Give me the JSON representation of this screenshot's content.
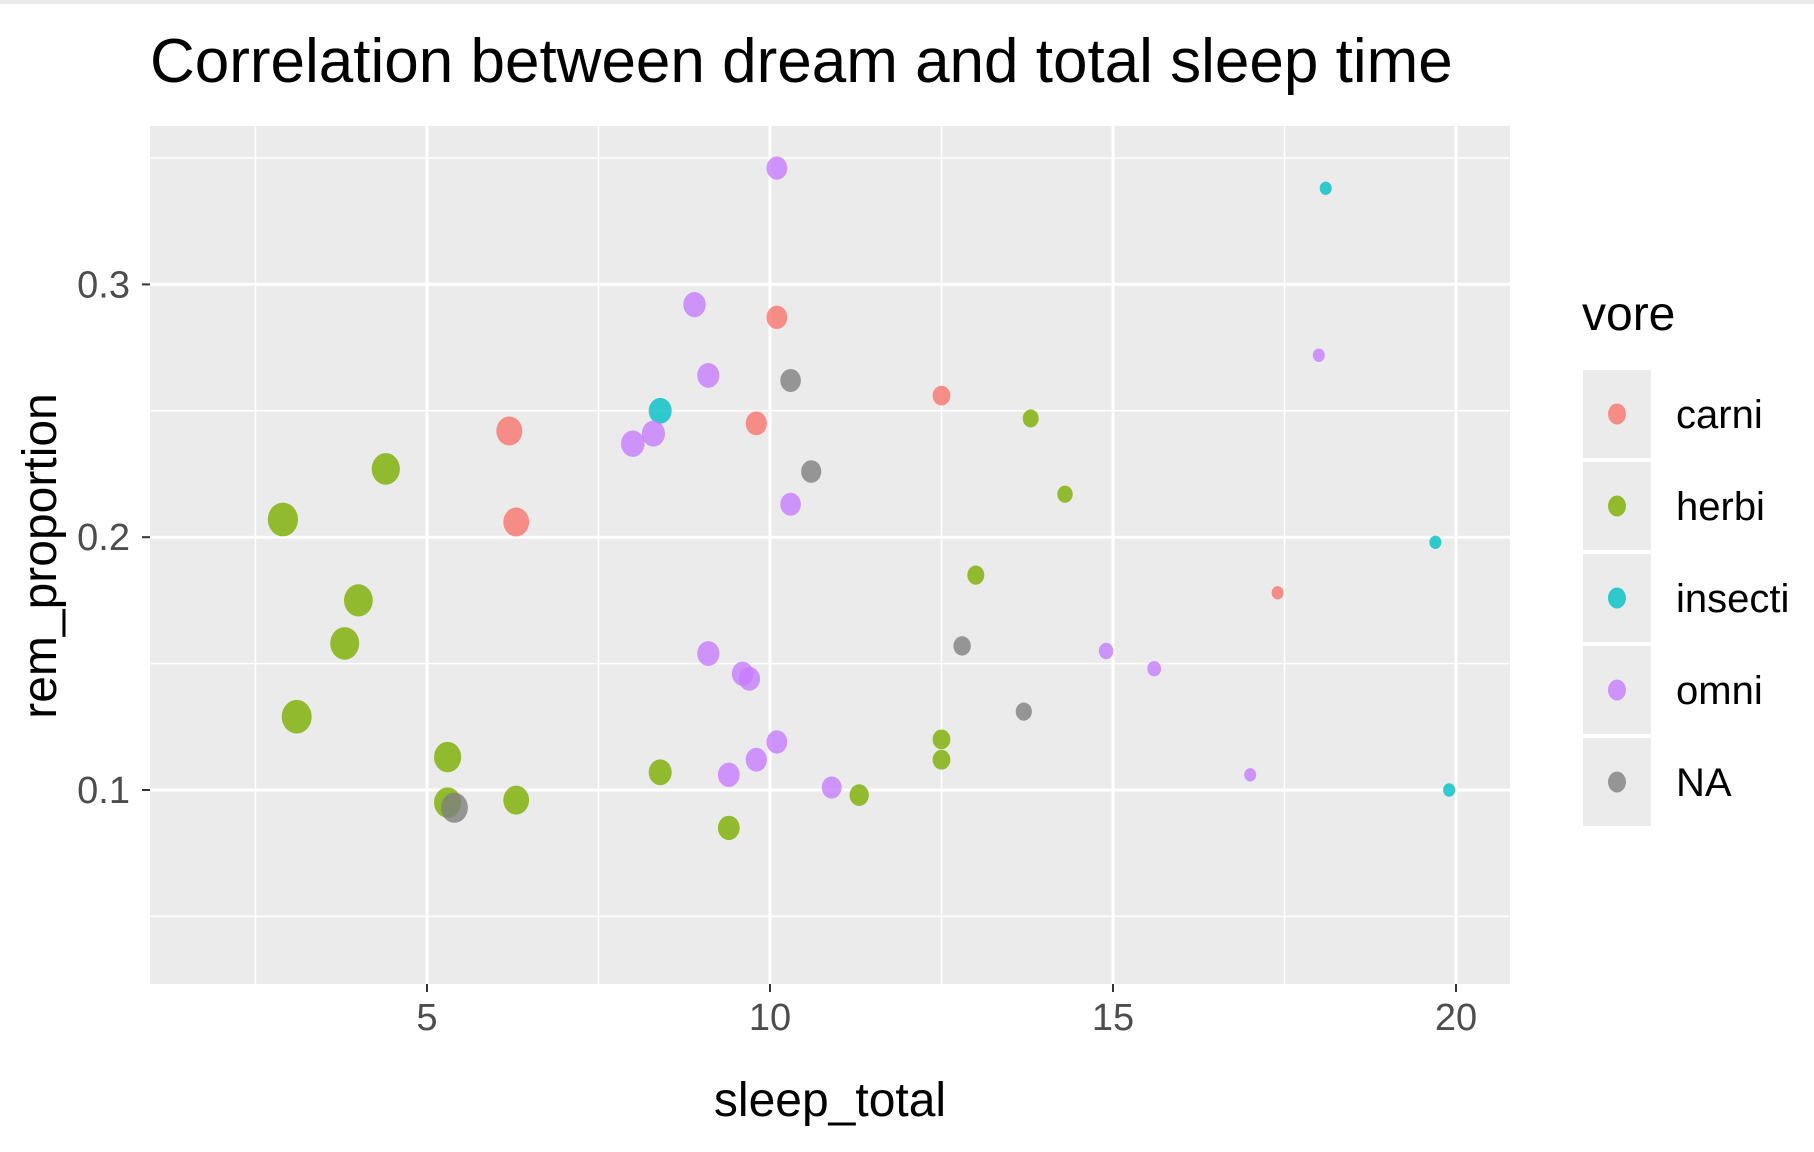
{
  "chart_data": {
    "type": "scatter",
    "title": "Correlation between dream and total sleep time",
    "xlabel": "sleep_total",
    "ylabel": "rem_proportion",
    "xlim": [
      1.0,
      21.0
    ],
    "ylim": [
      0.03,
      0.36
    ],
    "x_ticks": [
      5,
      10,
      15,
      20
    ],
    "x_tick_labels": [
      "5",
      "10",
      "15",
      "20"
    ],
    "y_ticks": [
      0.1,
      0.2,
      0.3
    ],
    "y_tick_labels": [
      "0.1",
      "0.2",
      "0.3"
    ],
    "grid": true,
    "legend": {
      "title": "vore",
      "position": "right",
      "entries": [
        {
          "label": "carni",
          "color": "#F8766D"
        },
        {
          "label": "herbi",
          "color": "#7CAE00"
        },
        {
          "label": "insecti",
          "color": "#00BFC4"
        },
        {
          "label": "omni",
          "color": "#C77CFF"
        },
        {
          "label": "NA",
          "color": "#7F7F7F"
        }
      ]
    },
    "size_encoding": "larger points at shorter sleep_total",
    "series": [
      {
        "name": "carni",
        "points": [
          {
            "x": 10.1,
            "y": 0.287
          },
          {
            "x": 12.5,
            "y": 0.256
          },
          {
            "x": 6.2,
            "y": 0.242
          },
          {
            "x": 9.8,
            "y": 0.245
          },
          {
            "x": 6.3,
            "y": 0.206
          },
          {
            "x": 17.4,
            "y": 0.178
          }
        ]
      },
      {
        "name": "herbi",
        "points": [
          {
            "x": 4.4,
            "y": 0.227
          },
          {
            "x": 2.9,
            "y": 0.207
          },
          {
            "x": 4.0,
            "y": 0.175
          },
          {
            "x": 3.8,
            "y": 0.158
          },
          {
            "x": 3.1,
            "y": 0.129
          },
          {
            "x": 5.3,
            "y": 0.113
          },
          {
            "x": 5.3,
            "y": 0.095
          },
          {
            "x": 6.3,
            "y": 0.096
          },
          {
            "x": 8.4,
            "y": 0.107
          },
          {
            "x": 9.4,
            "y": 0.085
          },
          {
            "x": 11.3,
            "y": 0.098
          },
          {
            "x": 12.5,
            "y": 0.12
          },
          {
            "x": 12.5,
            "y": 0.112
          },
          {
            "x": 13.0,
            "y": 0.185
          },
          {
            "x": 13.8,
            "y": 0.247
          },
          {
            "x": 14.3,
            "y": 0.217
          }
        ]
      },
      {
        "name": "insecti",
        "points": [
          {
            "x": 18.1,
            "y": 0.338
          },
          {
            "x": 8.4,
            "y": 0.25
          },
          {
            "x": 19.7,
            "y": 0.198
          },
          {
            "x": 19.9,
            "y": 0.1
          }
        ]
      },
      {
        "name": "omni",
        "points": [
          {
            "x": 10.1,
            "y": 0.346
          },
          {
            "x": 8.9,
            "y": 0.292
          },
          {
            "x": 9.1,
            "y": 0.264
          },
          {
            "x": 8.0,
            "y": 0.237
          },
          {
            "x": 8.3,
            "y": 0.241
          },
          {
            "x": 10.3,
            "y": 0.213
          },
          {
            "x": 9.1,
            "y": 0.154
          },
          {
            "x": 9.6,
            "y": 0.146
          },
          {
            "x": 9.7,
            "y": 0.144
          },
          {
            "x": 9.4,
            "y": 0.106
          },
          {
            "x": 9.8,
            "y": 0.112
          },
          {
            "x": 10.1,
            "y": 0.119
          },
          {
            "x": 10.9,
            "y": 0.101
          },
          {
            "x": 14.9,
            "y": 0.155
          },
          {
            "x": 15.6,
            "y": 0.148
          },
          {
            "x": 17.0,
            "y": 0.106
          },
          {
            "x": 18.0,
            "y": 0.272
          }
        ]
      },
      {
        "name": "NA",
        "points": [
          {
            "x": 10.3,
            "y": 0.262
          },
          {
            "x": 10.6,
            "y": 0.226
          },
          {
            "x": 12.8,
            "y": 0.157
          },
          {
            "x": 13.7,
            "y": 0.131
          },
          {
            "x": 5.4,
            "y": 0.093
          }
        ]
      }
    ]
  }
}
